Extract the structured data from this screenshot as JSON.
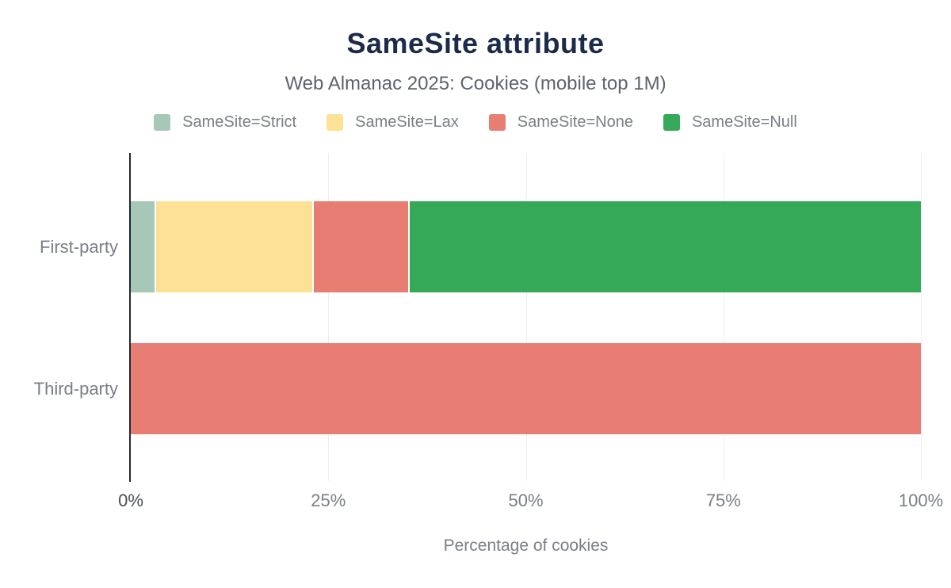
{
  "chart_data": {
    "type": "bar",
    "orientation": "horizontal",
    "stacked": true,
    "title": "SameSite attribute",
    "subtitle": "Web Almanac 2025: Cookies (mobile top 1M)",
    "xlabel": "Percentage of cookies",
    "categories": [
      "First-party",
      "Third-party"
    ],
    "series": [
      {
        "name": "SameSite=Strict",
        "color": "#a6c9b7",
        "values": [
          3.2,
          0
        ]
      },
      {
        "name": "SameSite=Lax",
        "color": "#fde296",
        "values": [
          20.0,
          0
        ]
      },
      {
        "name": "SameSite=None",
        "color": "#e87d74",
        "values": [
          12.1,
          100
        ]
      },
      {
        "name": "SameSite=Null",
        "color": "#35a957",
        "values": [
          64.7,
          0
        ]
      }
    ],
    "xlim": [
      0,
      100
    ],
    "xticks": [
      {
        "value": 0,
        "label": "0%"
      },
      {
        "value": 25,
        "label": "25%"
      },
      {
        "value": 50,
        "label": "50%"
      },
      {
        "value": 75,
        "label": "75%"
      },
      {
        "value": 100,
        "label": "100%"
      }
    ],
    "grid": true,
    "legend_position": "top"
  },
  "colors": {
    "background": "#ffffff",
    "title": "#1c2b4a",
    "subtitle": "#5d646e",
    "label": "#797f87",
    "tick_zero": "#4a4e54",
    "axis": "#25282d",
    "gridline": "#edeef0"
  }
}
